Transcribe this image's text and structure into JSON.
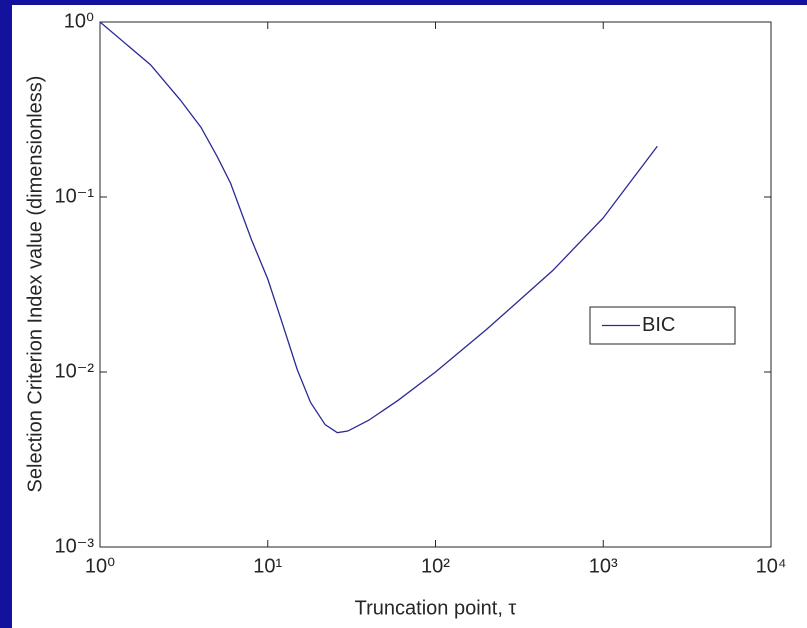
{
  "chart_data": {
    "type": "line",
    "xlabel": "Truncation point, τ",
    "ylabel": "Selection Criterion Index value (dimensionless)",
    "x": [
      1,
      2,
      3,
      4,
      5,
      6,
      8,
      10,
      12,
      15,
      18,
      22,
      26,
      30,
      40,
      60,
      100,
      200,
      500,
      1000,
      2100
    ],
    "series": [
      {
        "name": "BIC",
        "color": "#2a2a96",
        "values": [
          1.0,
          0.57,
          0.36,
          0.25,
          0.17,
          0.12,
          0.057,
          0.034,
          0.02,
          0.0103,
          0.0067,
          0.005,
          0.0045,
          0.0046,
          0.0053,
          0.0069,
          0.01,
          0.0174,
          0.038,
          0.076,
          0.195
        ]
      }
    ],
    "xscale": "log",
    "yscale": "log",
    "xlim": [
      1,
      10000
    ],
    "ylim": [
      0.001,
      1
    ],
    "xticks": [
      {
        "value": 1,
        "label": "10⁰"
      },
      {
        "value": 10,
        "label": "10¹"
      },
      {
        "value": 100,
        "label": "10²"
      },
      {
        "value": 1000,
        "label": "10³"
      },
      {
        "value": 10000,
        "label": "10⁴"
      }
    ],
    "yticks": [
      {
        "value": 0.001,
        "label": "10⁻³"
      },
      {
        "value": 0.01,
        "label": "10⁻²"
      },
      {
        "value": 0.1,
        "label": "10⁻¹"
      },
      {
        "value": 1,
        "label": "10⁰"
      }
    ],
    "grid": false,
    "legend": "right"
  }
}
